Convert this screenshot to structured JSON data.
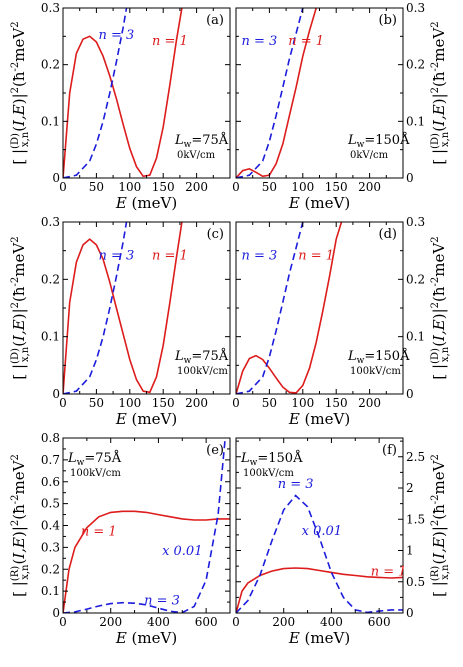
{
  "chart_data": [
    {
      "panel": "(a)",
      "type": "line",
      "lw": "L",
      "lw_sub": "w",
      "lw_value": "=75Å",
      "field": "0kV/cm",
      "xlabel": "E (meV)",
      "ylabel": "[ |(D)x,n(I,E)|² (ħ⁻²meV²)",
      "xlim": [
        0,
        250
      ],
      "ylim": [
        0,
        0.3
      ],
      "xticks": [
        "0",
        "50",
        "100",
        "150",
        "200"
      ],
      "yticks": [
        "0",
        "0.1",
        "0.2",
        "0.3"
      ],
      "series": [
        {
          "name": "n = 1",
          "color": "#dd1c1c",
          "dash": "solid",
          "x": [
            0,
            10,
            20,
            30,
            40,
            50,
            60,
            70,
            80,
            90,
            100,
            110,
            120,
            130,
            140,
            150,
            160,
            170,
            178
          ],
          "y": [
            0,
            0.15,
            0.22,
            0.245,
            0.25,
            0.24,
            0.215,
            0.18,
            0.14,
            0.095,
            0.052,
            0.02,
            0.003,
            0.005,
            0.035,
            0.09,
            0.165,
            0.245,
            0.3
          ]
        },
        {
          "name": "n = 3",
          "color": "#1c1cdd",
          "dash": "dashed",
          "x": [
            0,
            20,
            40,
            50,
            60,
            70,
            80,
            90,
            95
          ],
          "y": [
            0,
            0.005,
            0.03,
            0.06,
            0.1,
            0.15,
            0.205,
            0.265,
            0.3
          ]
        }
      ],
      "annotations": [
        "n = 3",
        "n = 1"
      ]
    },
    {
      "panel": "(b)",
      "type": "line",
      "lw": "L",
      "lw_sub": "w",
      "lw_value": "=150Å",
      "field": "0kV/cm",
      "xlabel": "E (meV)",
      "ylabel": "[ |(D)x,n(I,E)|² (ħ⁻²meV²)",
      "xlim": [
        0,
        250
      ],
      "ylim": [
        0,
        0.3
      ],
      "xticks": [
        "0",
        "50",
        "100",
        "150",
        "200"
      ],
      "yticks": [
        "0",
        "0.1",
        "0.2",
        "0.3"
      ],
      "series": [
        {
          "name": "n = 1",
          "color": "#dd1c1c",
          "dash": "solid",
          "x": [
            0,
            10,
            20,
            30,
            40,
            50,
            60,
            70,
            80,
            90,
            100,
            110,
            120
          ],
          "y": [
            0,
            0.013,
            0.016,
            0.01,
            0.003,
            0.005,
            0.025,
            0.06,
            0.11,
            0.16,
            0.215,
            0.26,
            0.3
          ]
        },
        {
          "name": "n = 3",
          "color": "#1c1cdd",
          "dash": "dashed",
          "x": [
            0,
            20,
            40,
            50,
            60,
            70,
            80,
            90,
            100
          ],
          "y": [
            0,
            0.005,
            0.03,
            0.065,
            0.11,
            0.16,
            0.21,
            0.255,
            0.3
          ]
        }
      ],
      "annotations": [
        "n = 3",
        "n = 1"
      ]
    },
    {
      "panel": "(c)",
      "type": "line",
      "lw": "L",
      "lw_sub": "w",
      "lw_value": "=75Å",
      "field": "100kV/cm",
      "xlabel": "E (meV)",
      "ylabel": "[ |(D)x,n(I,E)|² (ħ⁻²meV²)",
      "xlim": [
        0,
        250
      ],
      "ylim": [
        0,
        0.3
      ],
      "xticks": [
        "0",
        "50",
        "100",
        "150",
        "200"
      ],
      "yticks": [
        "0",
        "0.1",
        "0.2",
        "0.3"
      ],
      "series": [
        {
          "name": "n = 1",
          "color": "#dd1c1c",
          "dash": "solid",
          "x": [
            0,
            10,
            20,
            30,
            40,
            50,
            60,
            70,
            80,
            90,
            100,
            110,
            120,
            130,
            140,
            150,
            160,
            170,
            178
          ],
          "y": [
            0,
            0.16,
            0.23,
            0.26,
            0.27,
            0.26,
            0.235,
            0.195,
            0.15,
            0.105,
            0.06,
            0.025,
            0.005,
            0.003,
            0.03,
            0.085,
            0.16,
            0.24,
            0.3
          ]
        },
        {
          "name": "n = 3",
          "color": "#1c1cdd",
          "dash": "dashed",
          "x": [
            0,
            20,
            40,
            50,
            60,
            70,
            80,
            90,
            95
          ],
          "y": [
            0,
            0.005,
            0.03,
            0.06,
            0.1,
            0.15,
            0.205,
            0.265,
            0.3
          ]
        }
      ],
      "annotations": [
        "n = 3",
        "n = 1"
      ]
    },
    {
      "panel": "(d)",
      "type": "line",
      "lw": "L",
      "lw_sub": "w",
      "lw_value": "=150Å",
      "field": "100kV/cm",
      "xlabel": "E (meV)",
      "ylabel": "[ |(D)x,n(I,E)|² (ħ⁻²meV²)",
      "xlim": [
        0,
        250
      ],
      "ylim": [
        0,
        0.3
      ],
      "xticks": [
        "0",
        "50",
        "100",
        "150",
        "200"
      ],
      "yticks": [
        "0",
        "0.1",
        "0.2",
        "0.3"
      ],
      "series": [
        {
          "name": "n = 1",
          "color": "#dd1c1c",
          "dash": "solid",
          "x": [
            0,
            10,
            20,
            30,
            40,
            50,
            60,
            70,
            80,
            90,
            100,
            110,
            120,
            130,
            140,
            150,
            158
          ],
          "y": [
            0,
            0.04,
            0.062,
            0.067,
            0.06,
            0.045,
            0.028,
            0.012,
            0.003,
            0.002,
            0.015,
            0.045,
            0.09,
            0.145,
            0.205,
            0.27,
            0.3
          ]
        },
        {
          "name": "n = 3",
          "color": "#1c1cdd",
          "dash": "dashed",
          "x": [
            0,
            20,
            40,
            50,
            60,
            70,
            80,
            90,
            100
          ],
          "y": [
            0,
            0.005,
            0.03,
            0.065,
            0.11,
            0.16,
            0.21,
            0.255,
            0.3
          ]
        }
      ],
      "annotations": [
        "n = 3",
        "n = 1"
      ]
    },
    {
      "panel": "(e)",
      "type": "line",
      "lw": "L",
      "lw_sub": "w",
      "lw_value": "=75Å",
      "field": "100kV/cm",
      "xlabel": "E (meV)",
      "ylabel": "[ |(R)x,n(I,E)|² (ħ⁻²meV²)",
      "xlim": [
        0,
        700
      ],
      "ylim": [
        0,
        0.8
      ],
      "xticks": [
        "0",
        "200",
        "400",
        "600"
      ],
      "yticks": [
        "0",
        "0.1",
        "0.2",
        "0.3",
        "0.4",
        "0.5",
        "0.6",
        "0.7",
        "0.8"
      ],
      "series": [
        {
          "name": "n = 1",
          "color": "#dd1c1c",
          "dash": "solid",
          "x": [
            0,
            25,
            50,
            100,
            150,
            200,
            250,
            300,
            350,
            400,
            450,
            500,
            550,
            600,
            650,
            700
          ],
          "y": [
            0,
            0.2,
            0.3,
            0.39,
            0.44,
            0.46,
            0.465,
            0.465,
            0.46,
            0.45,
            0.44,
            0.43,
            0.425,
            0.425,
            0.43,
            0.43
          ]
        },
        {
          "name": "n = 3",
          "color": "#1c1cdd",
          "dash": "dashed",
          "x": [
            0,
            50,
            100,
            150,
            200,
            250,
            300,
            350,
            400,
            450,
            500,
            550,
            600,
            650,
            680
          ],
          "y": [
            0,
            0.005,
            0.018,
            0.032,
            0.043,
            0.047,
            0.045,
            0.037,
            0.022,
            0.008,
            0.002,
            0.03,
            0.15,
            0.45,
            0.8
          ]
        }
      ],
      "annotations": [
        "n = 1",
        "x 0.01",
        "n = 3"
      ]
    },
    {
      "panel": "(f)",
      "type": "line",
      "lw": "L",
      "lw_sub": "w",
      "lw_value": "=150Å",
      "field": "100kV/cm",
      "xlabel": "E (meV)",
      "ylabel": "[ |(R)x,n(I,E)|² (ħ⁻²meV²)",
      "xlim": [
        0,
        700
      ],
      "ylim": [
        0,
        2.8
      ],
      "xticks": [
        "0",
        "200",
        "400",
        "600"
      ],
      "yticks": [
        "0",
        "0.5",
        "1",
        "1.5",
        "2",
        "2.5"
      ],
      "series": [
        {
          "name": "n = 1",
          "color": "#dd1c1c",
          "dash": "solid",
          "x": [
            0,
            25,
            50,
            100,
            150,
            200,
            250,
            300,
            350,
            400,
            450,
            500,
            550,
            600,
            650,
            700
          ],
          "y": [
            0,
            0.35,
            0.48,
            0.6,
            0.67,
            0.71,
            0.72,
            0.71,
            0.68,
            0.65,
            0.62,
            0.6,
            0.58,
            0.57,
            0.56,
            0.57
          ]
        },
        {
          "name": "n = 3",
          "color": "#1c1cdd",
          "dash": "dashed",
          "x": [
            0,
            50,
            100,
            150,
            200,
            250,
            300,
            350,
            400,
            450,
            500,
            550,
            600,
            650,
            700
          ],
          "y": [
            0,
            0.2,
            0.6,
            1.15,
            1.65,
            1.88,
            1.7,
            1.2,
            0.65,
            0.25,
            0.05,
            0.01,
            0.03,
            0.05,
            0.05
          ]
        }
      ],
      "annotations": [
        "n = 3",
        "x 0.01",
        "n = 1"
      ]
    }
  ]
}
